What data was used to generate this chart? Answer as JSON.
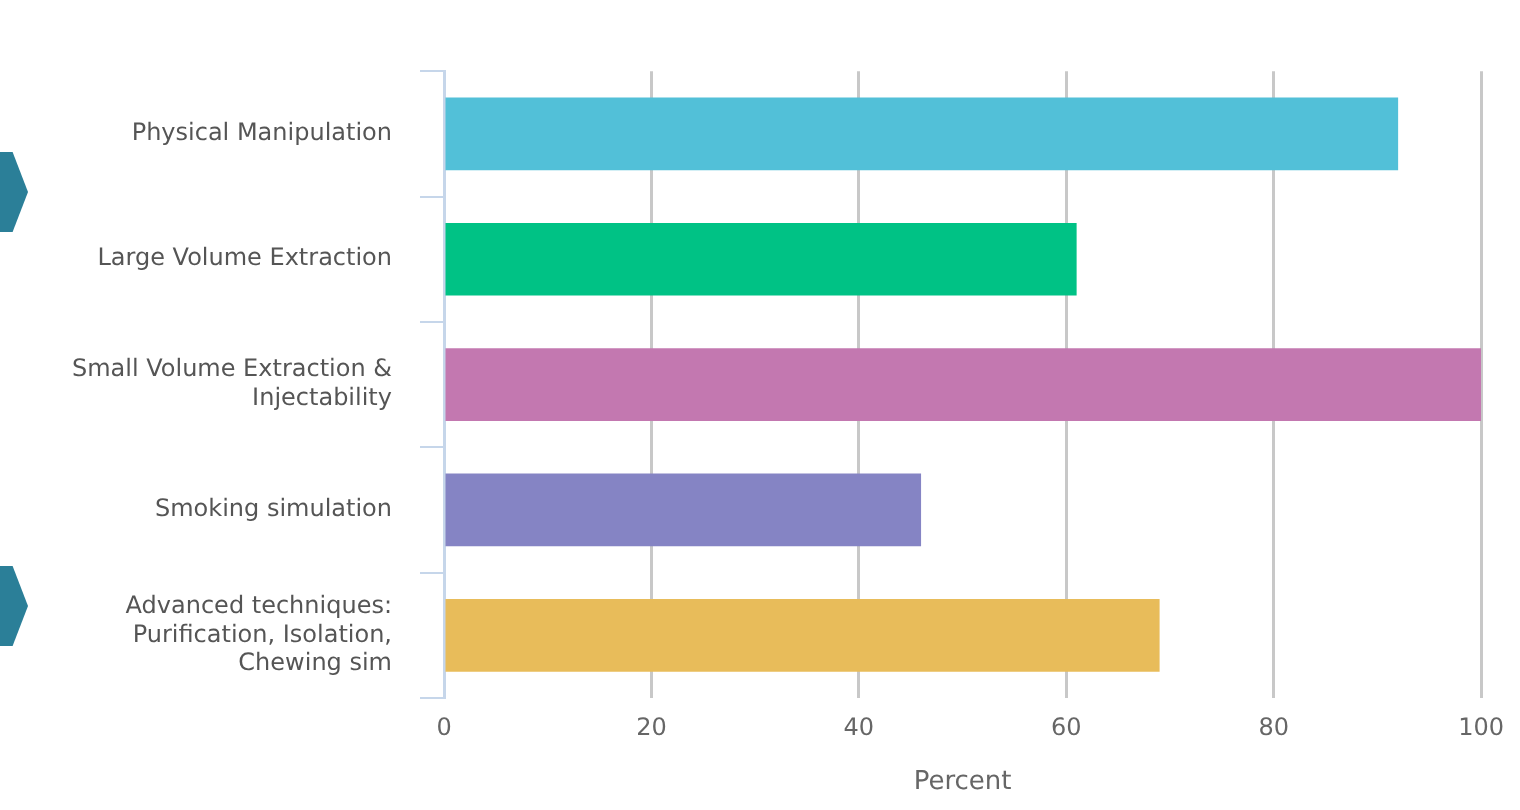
{
  "chart_data": {
    "type": "bar",
    "orientation": "horizontal",
    "xlabel": "Percent",
    "categories": [
      "Physical Manipulation",
      "Large Volume Extraction",
      "Small Volume Extraction & Injectability",
      "Smoking simulation",
      "Advanced techniques: Purification, Isolation, Chewing sim"
    ],
    "values": [
      92,
      61,
      100,
      46,
      69
    ],
    "colors": [
      "#52c0d8",
      "#00c285",
      "#c378b0",
      "#8584c4",
      "#e8bc5a"
    ],
    "xlim": [
      0,
      100
    ],
    "xticks": [
      0,
      20,
      40,
      60,
      80,
      100
    ],
    "grid": "x",
    "legend": false
  }
}
